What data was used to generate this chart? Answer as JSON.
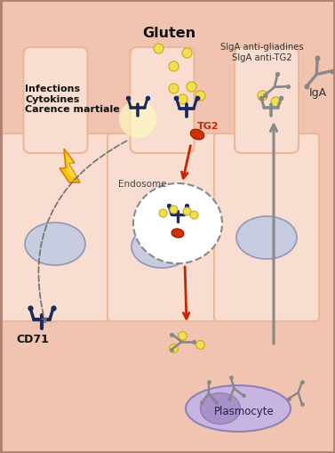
{
  "bg_color": "#f0c4b0",
  "cell_color": "#f8ddd0",
  "cell_edge": "#e8b898",
  "nucleus_color": "#c8cce0",
  "nucleus_inner_color": "#b8bcdc",
  "lamina_color": "#f0c4b0",
  "title": "Gluten",
  "text_infections": "Infections\nCytokines\nCarence martiale",
  "text_cd71": "CD71",
  "text_tg2": "TG2",
  "text_endosome": "Endosome",
  "text_iga": "IgA",
  "text_slga": "SIgA anti-gliadines\nSIgA anti-TG2",
  "text_plasmocyte": "Plasmocyte",
  "dark_blue": "#1a2a5e",
  "red_color": "#cc2200",
  "gray_color": "#888888",
  "yellow_dot": "#f0e050",
  "yellow_edge": "#c8a820",
  "orange_color": "#f5a000",
  "border_color": "#b08070"
}
